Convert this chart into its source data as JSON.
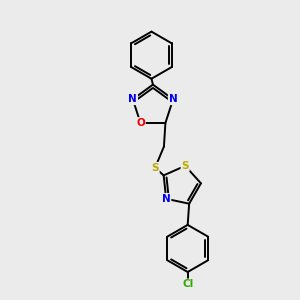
{
  "background_color": "#ebebeb",
  "bond_color": "#000000",
  "atom_colors": {
    "N": "#0000ee",
    "O": "#ee0000",
    "S": "#bbaa00",
    "Cl": "#33aa00",
    "C": "#000000"
  },
  "figsize": [
    3.0,
    3.0
  ],
  "dpi": 100
}
